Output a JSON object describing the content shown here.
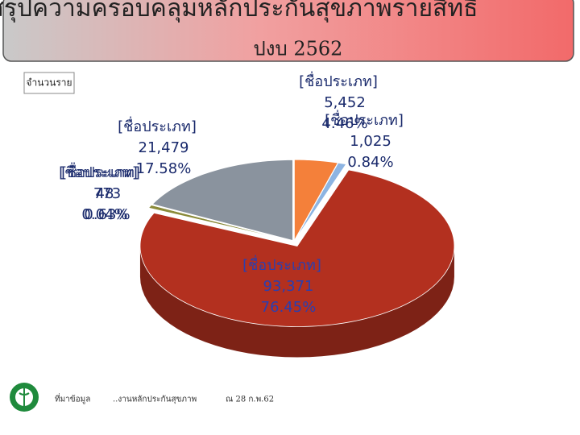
{
  "header": {
    "title": "สรุปความครอบคลุมหลักประกันสุขภาพรายสิทธิ",
    "subtitle": "ปงบ 2562"
  },
  "chart_data": {
    "type": "pie3d",
    "y_label": "จำนวนราย",
    "categories": [
      "[ชื่อประเภท]",
      "[ชื่อประเภท]",
      "[ชื่อประเภท]",
      "[ชื่อประเภท]",
      "[ชื่อประเภท]",
      "[ชื่อประเภท]"
    ],
    "values": [
      5452,
      1025,
      93371,
      773,
      48,
      21479
    ],
    "value_labels": [
      "5,452",
      "1,025",
      "93,371",
      "773",
      "48",
      "21,479"
    ],
    "percentages": [
      4.46,
      0.84,
      76.45,
      0.63,
      0.04,
      17.58
    ],
    "percentage_labels": [
      "4.46%",
      "0.84%",
      "76.45%",
      "0.63%",
      "0.04%",
      "17.58%"
    ],
    "colors": [
      "#f4803a",
      "#8db4e2",
      "#b3301f",
      "#8b8b3a",
      "#c8b560",
      "#8a939e"
    ]
  },
  "footer": {
    "source": "ที่มาข้อมูล",
    "office": "..งานหลักประกันสุขภาพ",
    "date": "ณ 28 ก.พ.62"
  }
}
